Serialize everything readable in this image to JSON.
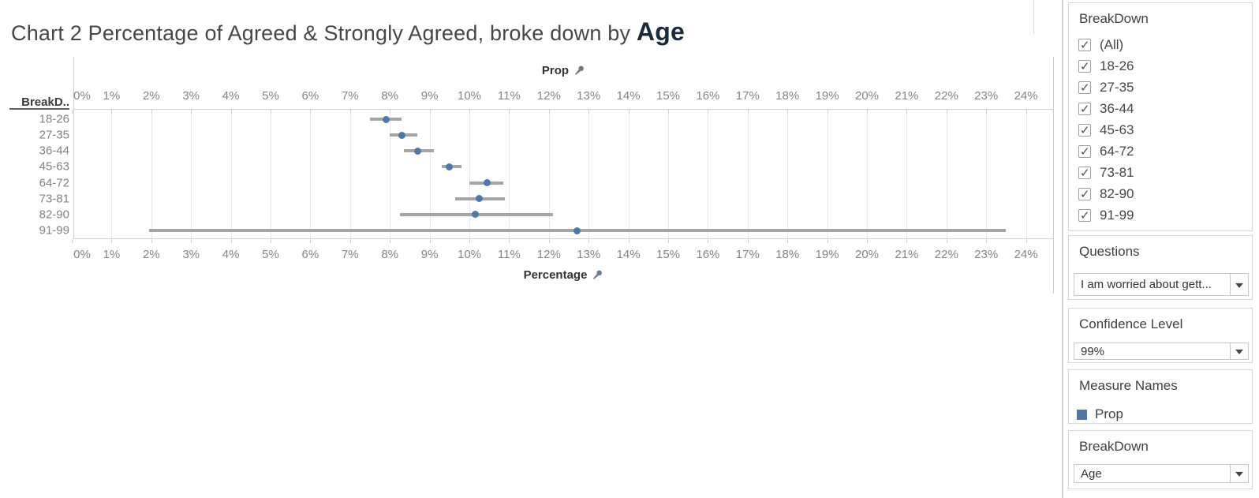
{
  "title": {
    "prefix": "Chart 2 Percentage of Agreed & Strongly Agreed, broke down by ",
    "emphasis": "Age"
  },
  "chart_data": {
    "type": "scatter",
    "subtype": "dot-plot-with-confidence-interval-error-bars",
    "orientation": "horizontal",
    "title": "Chart 2 Percentage of Agreed & Strongly Agreed, broke down by Age",
    "top_axis_label": "Prop",
    "xlabel": "Percentage",
    "row_header_label": "BreakD..",
    "x_unit": "%",
    "xlim": [
      0,
      24.6
    ],
    "x_ticks": [
      0,
      1,
      2,
      3,
      4,
      5,
      6,
      7,
      8,
      9,
      10,
      11,
      12,
      13,
      14,
      15,
      16,
      17,
      18,
      19,
      20,
      21,
      22,
      23,
      24
    ],
    "x_tick_labels": [
      "0%",
      "1%",
      "2%",
      "3%",
      "4%",
      "5%",
      "6%",
      "7%",
      "8%",
      "9%",
      "10%",
      "11%",
      "12%",
      "13%",
      "14%",
      "15%",
      "16%",
      "17%",
      "18%",
      "19%",
      "20%",
      "21%",
      "22%",
      "23%",
      "24%"
    ],
    "gridlines": true,
    "categories": [
      "18-26",
      "27-35",
      "36-44",
      "45-63",
      "64-72",
      "73-81",
      "82-90",
      "91-99"
    ],
    "series": [
      {
        "name": "Prop",
        "color": "#4e79a7",
        "error_bar_color": "#a5a5a5",
        "values": [
          7.9,
          8.3,
          8.7,
          9.5,
          10.45,
          10.25,
          10.15,
          12.7
        ],
        "ci_low": [
          7.5,
          8.0,
          8.35,
          9.3,
          10.0,
          9.65,
          8.25,
          1.95
        ],
        "ci_high": [
          8.3,
          8.7,
          9.1,
          9.8,
          10.85,
          10.9,
          12.1,
          23.5
        ]
      }
    ]
  },
  "icons": {
    "axis_pin": "pushpin-icon",
    "dropdown_arrow": "chevron-down-icon",
    "checkbox_check": "check-icon"
  },
  "sidebar": {
    "filter": {
      "title": "BreakDown",
      "items": [
        {
          "label": "(All)",
          "checked": true
        },
        {
          "label": "18-26",
          "checked": true
        },
        {
          "label": "27-35",
          "checked": true
        },
        {
          "label": "36-44",
          "checked": true
        },
        {
          "label": "45-63",
          "checked": true
        },
        {
          "label": "64-72",
          "checked": true
        },
        {
          "label": "73-81",
          "checked": true
        },
        {
          "label": "82-90",
          "checked": true
        },
        {
          "label": "91-99",
          "checked": true
        }
      ]
    },
    "questions": {
      "title": "Questions",
      "value": "I am worried about gett..."
    },
    "confidence": {
      "title": "Confidence Level",
      "value": "99%"
    },
    "measures": {
      "title": "Measure Names",
      "legend": [
        {
          "label": "Prop",
          "color": "#4e79a7"
        }
      ]
    },
    "breakdown_param": {
      "title": "BreakDown",
      "value": "Age"
    }
  }
}
